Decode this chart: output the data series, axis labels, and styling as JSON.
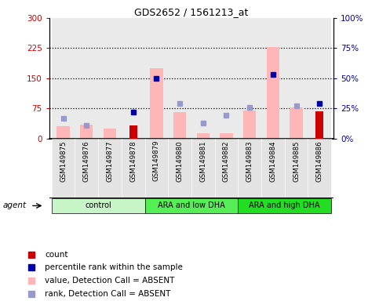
{
  "title": "GDS2652 / 1561213_at",
  "samples": [
    "GSM149875",
    "GSM149876",
    "GSM149877",
    "GSM149878",
    "GSM149879",
    "GSM149880",
    "GSM149881",
    "GSM149882",
    "GSM149883",
    "GSM149884",
    "GSM149885",
    "GSM149886"
  ],
  "groups": [
    {
      "label": "control",
      "start": 0,
      "end": 3
    },
    {
      "label": "ARA and low DHA",
      "start": 4,
      "end": 7
    },
    {
      "label": "ARA and high DHA",
      "start": 8,
      "end": 11
    }
  ],
  "group_colors": [
    "#c8f5c8",
    "#55ee55",
    "#22dd22"
  ],
  "pink_bar_values": [
    30,
    35,
    25,
    0,
    175,
    65,
    13,
    13,
    70,
    228,
    78,
    0
  ],
  "red_bar_values": [
    0,
    0,
    0,
    32,
    0,
    0,
    0,
    0,
    0,
    0,
    0,
    68
  ],
  "blue_sq_right": [
    null,
    null,
    null,
    22,
    50,
    null,
    null,
    null,
    null,
    53,
    null,
    29
  ],
  "lightblue_sq_right": [
    17,
    11,
    null,
    null,
    null,
    29,
    13,
    19,
    26,
    null,
    27,
    null
  ],
  "left_ylim": [
    0,
    300
  ],
  "right_ylim": [
    0,
    100
  ],
  "left_yticks": [
    0,
    75,
    150,
    225,
    300
  ],
  "right_yticks": [
    0,
    25,
    50,
    75,
    100
  ],
  "left_yticklabels": [
    "0",
    "75",
    "150",
    "225",
    "300"
  ],
  "right_yticklabels": [
    "0%",
    "25%",
    "50%",
    "75%",
    "100%"
  ],
  "pink_color": "#ffb6b6",
  "red_color": "#cc0000",
  "blue_color": "#0000aa",
  "light_blue_color": "#9999cc",
  "dotted_levels": [
    75,
    150,
    225
  ],
  "col_bg_color": "#cccccc",
  "left_axis_color": "#cc0000",
  "right_axis_color": "#0000aa"
}
